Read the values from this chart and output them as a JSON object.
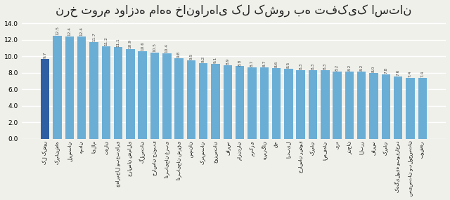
{
  "title": "نرخ تورم دوازده ماهه خانوارهای کل کشور به تفکیک استان",
  "categories": [
    "کل کشور",
    "کرمانشاه",
    "لرستان",
    "همدان",
    "ایلام",
    "تهران",
    "چهارمحال وبختیاری",
    "خراسان شمالی",
    "گلستان",
    "خراسان جنوبی",
    "آذربایجان غربی",
    "آذربایجان شرقی",
    "سمنان",
    "کردستان",
    "خوزستان",
    "فارس",
    "مازندران",
    "مرکزی",
    "هرمزگان",
    "قم",
    "اردبیل",
    "خراسان رضوی",
    "کرمان",
    "اصفهان",
    "یزد",
    "زنجان",
    "البرز",
    "فارس",
    "کرمان",
    "کهگیلویه وبویراحمد",
    "سیستان وبلوچستان",
    "بوشهر"
  ],
  "values": [
    9.7,
    12.5,
    12.4,
    12.4,
    11.7,
    11.2,
    11.1,
    10.9,
    10.6,
    10.5,
    10.4,
    9.8,
    9.5,
    9.2,
    9.1,
    8.9,
    8.8,
    8.7,
    8.7,
    8.6,
    8.5,
    8.3,
    8.3,
    8.3,
    8.2,
    8.2,
    8.2,
    8.0,
    7.8,
    7.6,
    7.4,
    7.4
  ],
  "bar_color_normal": "#6aaed6",
  "bar_color_first": "#2e5fa3",
  "ylim": [
    0,
    14.5
  ],
  "yticks": [
    0.0,
    2.0,
    4.0,
    6.0,
    8.0,
    10.0,
    12.0,
    14.0
  ],
  "background_color": "#f0f0eb",
  "grid_color": "#ffffff",
  "title_fontsize": 12
}
